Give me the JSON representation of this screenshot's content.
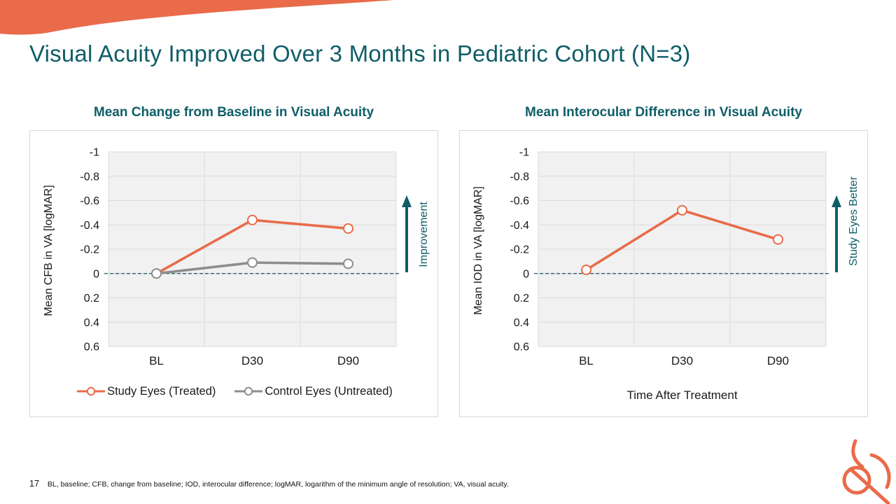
{
  "slide": {
    "title": "Visual Acuity Improved Over 3 Months in Pediatric Cohort (N=3)",
    "page_number": "17",
    "footnote": "BL, baseline; CFB, change from baseline; IOD, interocular difference; logMAR, logarithm of the minimum angle of resolution; VA, visual acuity."
  },
  "colors": {
    "accent_orange": "#E96B49",
    "teal": "#0F5E68",
    "series_gray": "#8D8D8D",
    "gridline": "#DBDBDB",
    "plot_bg": "#F1F1F1",
    "panel_border": "#D8D8D8",
    "zero_line": "#1C5363",
    "text": "#1A1A1A"
  },
  "icons": {
    "corner_swoosh": "orange-corner-swoosh",
    "logo": "orange-swirl-logo",
    "improvement_arrow": "up-arrow",
    "study_eyes_better_arrow": "up-arrow"
  },
  "chart_data": [
    {
      "type": "line",
      "title": "Mean Change from Baseline in Visual Acuity",
      "y_axis_label": "Mean CFB in VA [logMAR]",
      "x_axis_label": "",
      "categories": [
        "BL",
        "D30",
        "D90"
      ],
      "y_tick_values": [
        -1,
        -0.8,
        -0.6,
        -0.4,
        -0.2,
        0,
        0.2,
        0.4,
        0.6
      ],
      "y_tick_labels": [
        "-1",
        "-0.8",
        "-0.6",
        "-0.4",
        "-0.2",
        "0",
        "0.2",
        "0.4",
        "0.6"
      ],
      "ylim": [
        -1,
        0.6
      ],
      "y_axis_reversed": true,
      "zero_reference_line": true,
      "grid": true,
      "legend_position": "bottom",
      "annotation": "Improvement",
      "series": [
        {
          "name": "Study Eyes (Treated)",
          "color": "#E96B49",
          "values": [
            0,
            -0.44,
            -0.37
          ]
        },
        {
          "name": "Control Eyes (Untreated)",
          "color": "#8D8D8D",
          "values": [
            0,
            -0.09,
            -0.08
          ]
        }
      ]
    },
    {
      "type": "line",
      "title": "Mean Interocular Difference in Visual Acuity",
      "y_axis_label": "Mean IOD in VA [logMAR]",
      "x_axis_label": "Time After Treatment",
      "categories": [
        "BL",
        "D30",
        "D90"
      ],
      "y_tick_values": [
        -1,
        -0.8,
        -0.6,
        -0.4,
        -0.2,
        0,
        0.2,
        0.4,
        0.6
      ],
      "y_tick_labels": [
        "-1",
        "-0.8",
        "-0.6",
        "-0.4",
        "-0.2",
        "0",
        "0.2",
        "0.4",
        "0.6"
      ],
      "ylim": [
        -1,
        0.6
      ],
      "y_axis_reversed": true,
      "zero_reference_line": true,
      "grid": true,
      "legend_position": "none",
      "annotation": "Study Eyes Better",
      "series": [
        {
          "name": "Study Eyes (Treated)",
          "color": "#E96B49",
          "values": [
            -0.03,
            -0.52,
            -0.28
          ]
        }
      ]
    }
  ]
}
